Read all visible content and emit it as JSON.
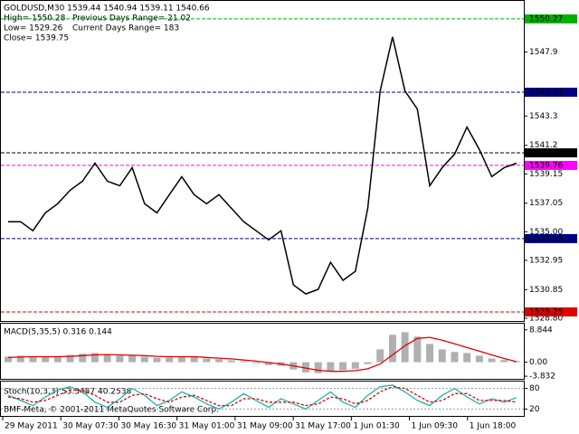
{
  "header": {
    "symbol_line": "GOLDUSD,M30  1539.44 1540.94 1539.11 1540.66",
    "high": "High= 1550.28",
    "prev_range": "Previous Days Range= 21.02",
    "low": "Low= 1529.26",
    "cur_range": "Current Days Range= 183",
    "close": "Close= 1539.75"
  },
  "chart_data": [
    {
      "type": "line",
      "ylim": [
        1528.6,
        1551.56
      ],
      "yticks": [
        1547.9,
        1543.3,
        1541.2,
        1539.15,
        1537.05,
        {
          "value": 1535,
          "label": "1535.00"
        },
        1532.95,
        1530.85,
        {
          "value": 1528.8,
          "label": "1528.80"
        }
      ],
      "levels": [
        {
          "value": 1550.27,
          "color": "#00b000"
        },
        {
          "value": 1545.01,
          "color": "#000080"
        },
        {
          "value": 1540.66,
          "color": "#000000"
        },
        {
          "value": 1539.76,
          "color": "#ff00ff"
        },
        {
          "value": 1534.51,
          "color": "#000080"
        },
        {
          "value": 1529.25,
          "color": "#e00000"
        }
      ],
      "series": [
        {
          "color": "#000000",
          "values": [
            1535.72,
            1535.72,
            1535.07,
            1536.36,
            1537.01,
            1537.98,
            1538.63,
            1539.92,
            1538.63,
            1538.3,
            1539.6,
            1537.01,
            1536.36,
            1537.66,
            1538.95,
            1537.66,
            1537.01,
            1537.66,
            1536.69,
            1535.72,
            1535.07,
            1534.42,
            1535.07,
            1531.19,
            1530.54,
            1530.87,
            1532.81,
            1531.51,
            1532.16,
            1536.69,
            1545.1,
            1548.98,
            1545.1,
            1543.8,
            1538.3,
            1539.6,
            1540.57,
            1542.51,
            1540.89,
            1538.95,
            1539.6,
            1539.92
          ]
        }
      ]
    },
    {
      "type": "macd",
      "title": "MACD(5,35,5) 0.316 0.144",
      "ylim": [
        -4.55,
        10.52
      ],
      "yticks": [
        8.844,
        {
          "value": 0,
          "label": "0.00"
        },
        -3.832
      ],
      "series": [
        {
          "color": "#b0b0b0",
          "values": [
            1.5,
            1.8,
            1.6,
            1.4,
            1.6,
            2.0,
            2.3,
            2.5,
            2.2,
            1.8,
            1.9,
            1.5,
            1.2,
            1.3,
            1.6,
            1.4,
            1.0,
            0.8,
            0.5,
            0.2,
            -0.3,
            -0.8,
            -1.0,
            -2.0,
            -2.8,
            -3.0,
            -2.6,
            -2.2,
            -1.8,
            -0.5,
            3.5,
            7.5,
            8.2,
            7.0,
            5.0,
            3.5,
            2.8,
            2.5,
            1.8,
            1.0,
            0.6,
            0.3
          ]
        },
        {
          "color": "#e00000",
          "values": [
            1.3,
            1.4,
            1.5,
            1.5,
            1.5,
            1.6,
            1.8,
            2.0,
            2.1,
            2.0,
            1.9,
            1.8,
            1.6,
            1.5,
            1.5,
            1.5,
            1.3,
            1.1,
            0.9,
            0.6,
            0.3,
            -0.1,
            -0.5,
            -1.0,
            -1.6,
            -2.2,
            -2.5,
            -2.5,
            -2.3,
            -1.8,
            -0.5,
            2.0,
            4.5,
            6.5,
            6.8,
            6.0,
            5.0,
            4.0,
            3.0,
            2.0,
            1.0,
            0.14
          ]
        }
      ]
    },
    {
      "type": "stoch",
      "title": "Stoch(10,3,3) 53.3487 40.2538",
      "ylim": [
        0,
        100
      ],
      "yticks": [
        80,
        20
      ],
      "series": [
        {
          "color": "#20b2aa",
          "values": [
            60,
            45,
            30,
            55,
            75,
            85,
            70,
            40,
            25,
            50,
            80,
            60,
            30,
            45,
            70,
            55,
            35,
            20,
            40,
            65,
            45,
            25,
            50,
            35,
            20,
            45,
            70,
            40,
            25,
            60,
            85,
            90,
            70,
            45,
            30,
            60,
            80,
            55,
            35,
            50,
            40,
            53.3487
          ]
        },
        {
          "color": "#e00000",
          "values": [
            55,
            50,
            40,
            45,
            60,
            75,
            75,
            60,
            40,
            40,
            60,
            65,
            50,
            40,
            55,
            60,
            45,
            30,
            30,
            50,
            50,
            40,
            40,
            40,
            30,
            35,
            55,
            50,
            35,
            45,
            70,
            85,
            80,
            60,
            40,
            45,
            65,
            65,
            45,
            45,
            45,
            40.2538
          ]
        }
      ]
    }
  ],
  "x_labels": [
    "29 May 2011",
    "30 May 07:30",
    "30 May 16:30",
    "31 May 01:00",
    "31 May 09:00",
    "31 May 17:00",
    "1 Jun 01:30",
    "1 Jun 09:30",
    "1 Jun 18:00"
  ],
  "copyright": "BMF-Meta, © 2001-2011 MetaQuotes Software Corp."
}
